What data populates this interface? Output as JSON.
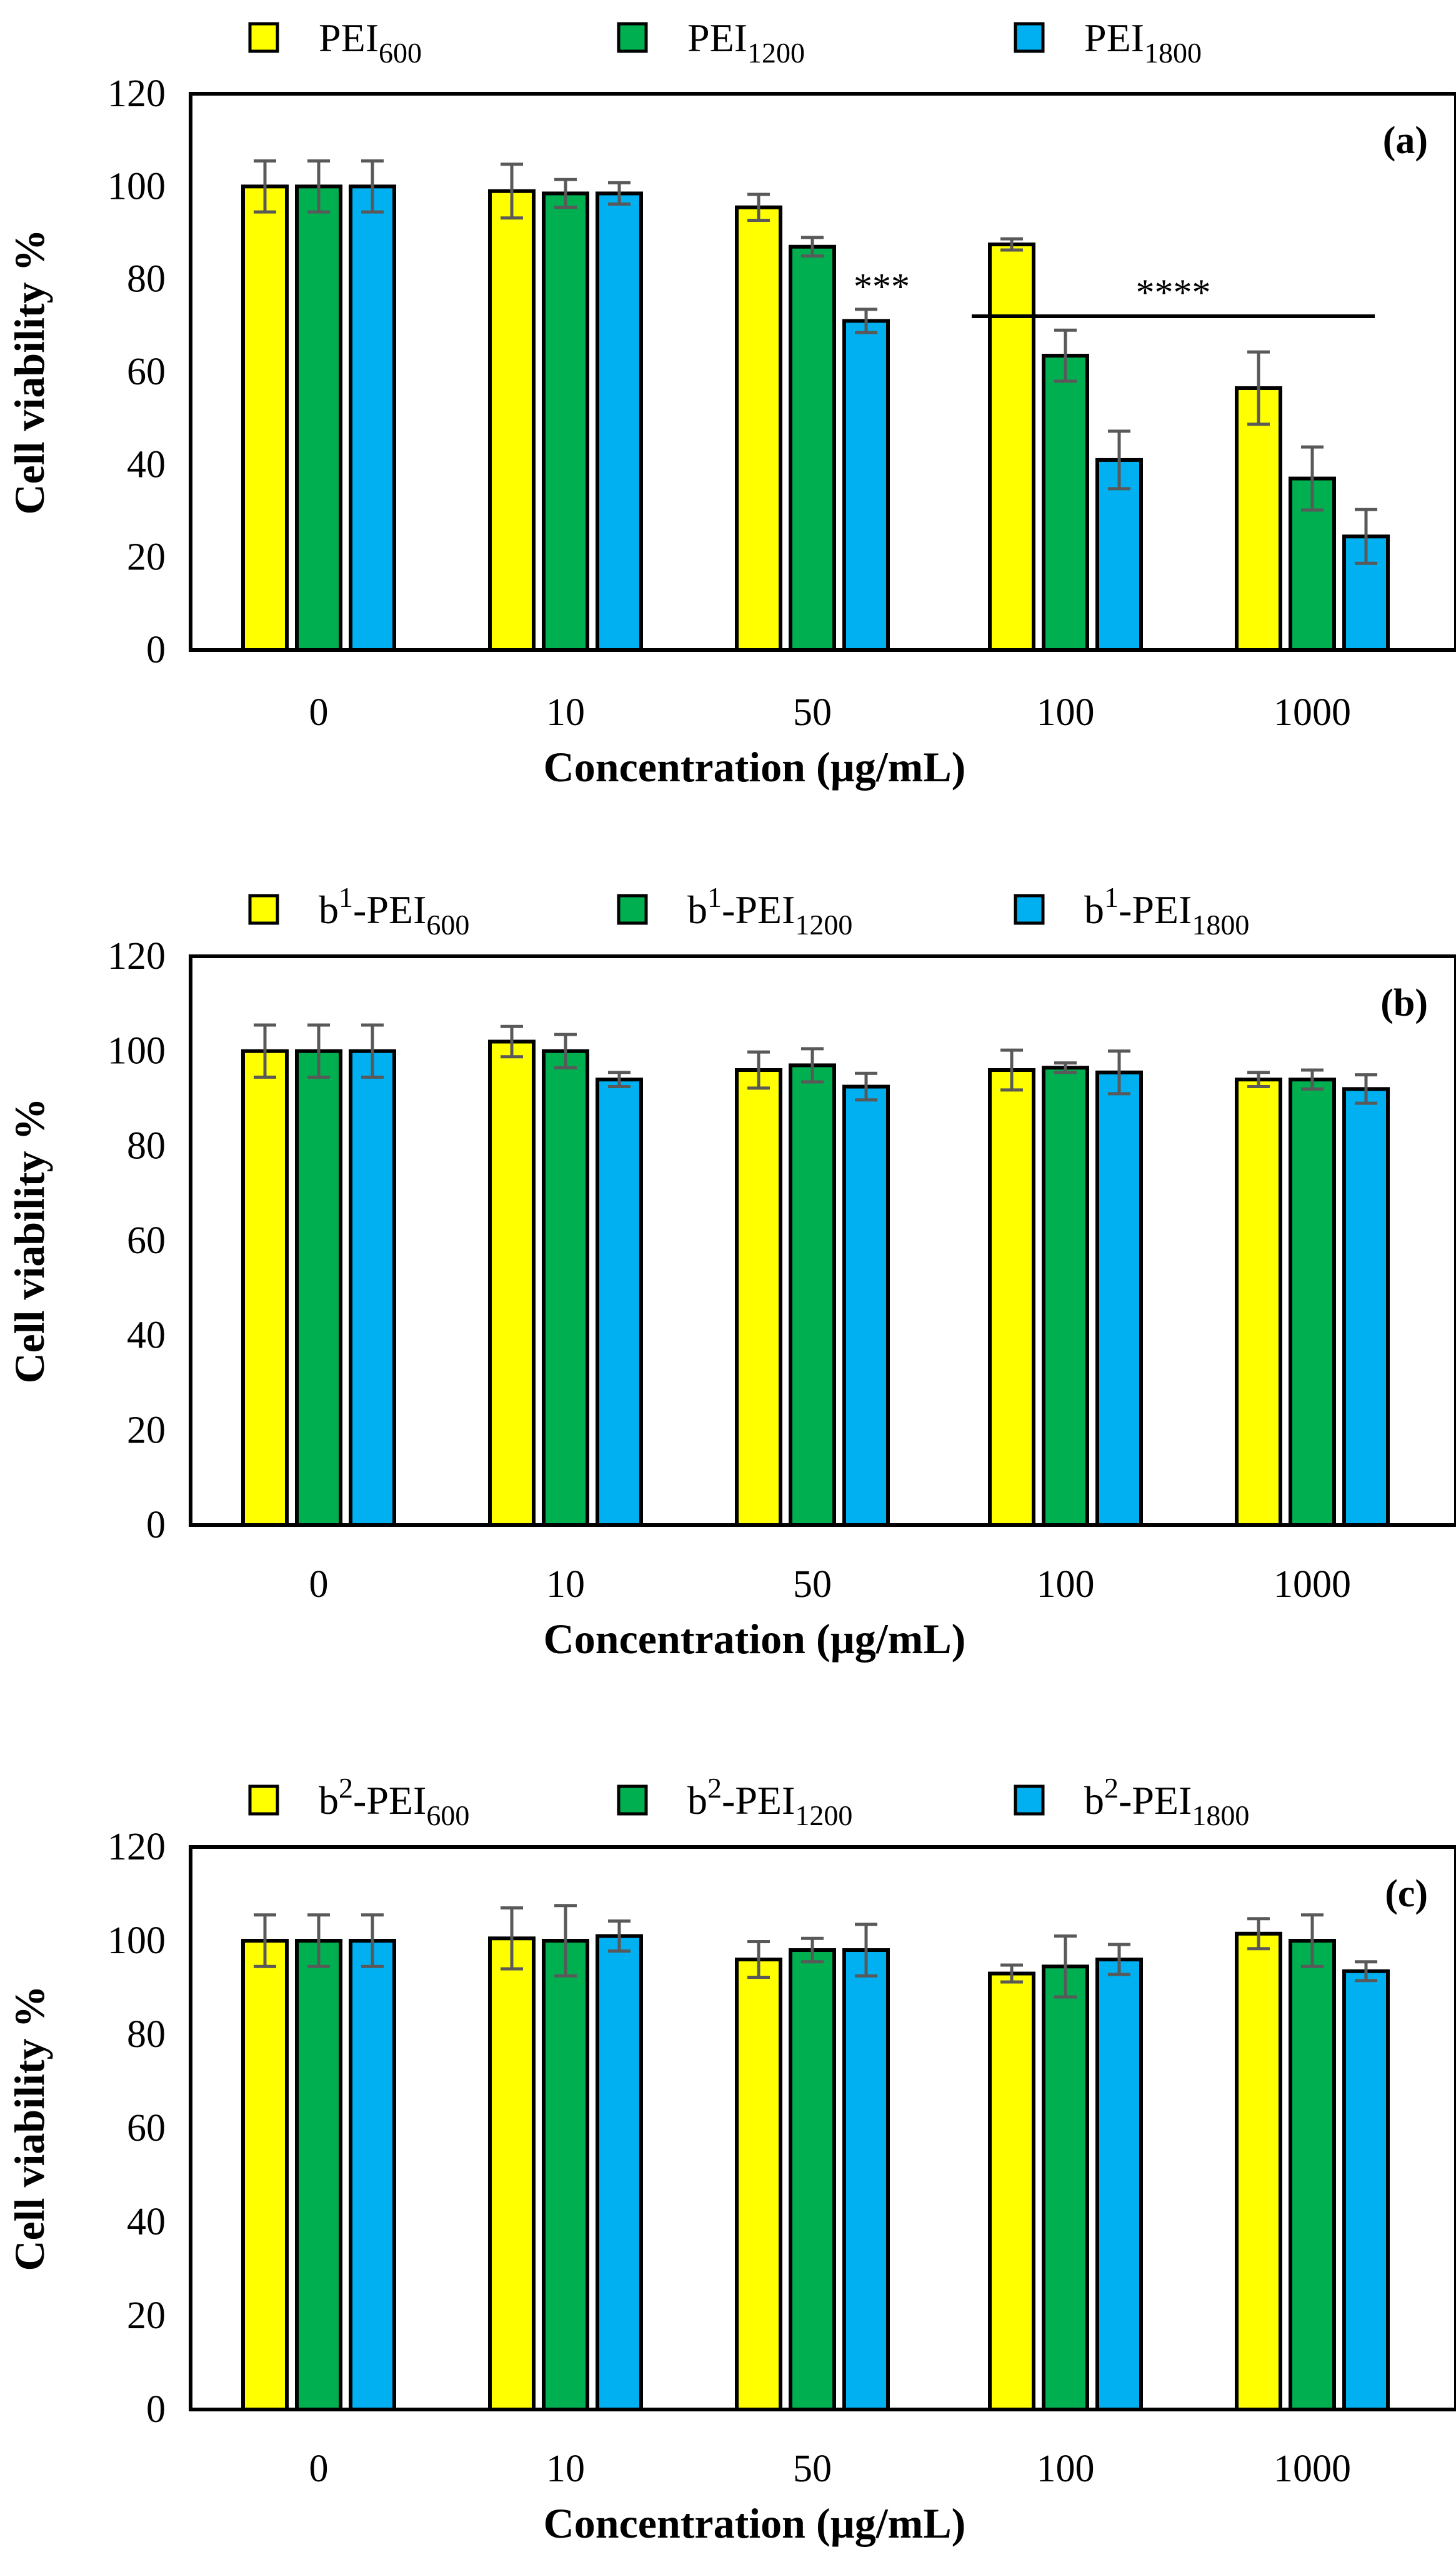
{
  "chart_data": [
    {
      "type": "bar",
      "panel_label": "(a)",
      "categories": [
        "0",
        "10",
        "50",
        "100",
        "1000"
      ],
      "xlabel": "Concentration (µg/mL)",
      "ylabel": "Cell viability %",
      "ylim": [
        0,
        120
      ],
      "yticks": [
        "0",
        "20",
        "40",
        "60",
        "80",
        "100",
        "120"
      ],
      "legend_position": "top",
      "series": [
        {
          "name": "PEI600",
          "prefix": "",
          "sup": "",
          "base": "PEI",
          "sub": "600",
          "color": "#ffff00",
          "values": [
            100,
            99,
            95.5,
            87.5,
            56.5
          ],
          "errors": [
            5.5,
            5.8,
            2.8,
            1.2,
            7.8
          ]
        },
        {
          "name": "PEI1200",
          "prefix": "",
          "sup": "",
          "base": "PEI",
          "sub": "1200",
          "color": "#00b050",
          "values": [
            100,
            98.5,
            87,
            63.5,
            37
          ],
          "errors": [
            5.5,
            3,
            2,
            5.5,
            6.8
          ]
        },
        {
          "name": "PEI1800",
          "prefix": "",
          "sup": "",
          "base": "PEI",
          "sub": "1800",
          "color": "#00b0f0",
          "values": [
            100,
            98.5,
            71,
            41,
            24.5
          ],
          "errors": [
            5.5,
            2.3,
            2.5,
            6.2,
            5.8
          ]
        }
      ],
      "annotations": [
        {
          "text": "***",
          "category_index": 2,
          "series_index": 2,
          "value": 80
        },
        {
          "text": "****",
          "from_category_index": 3,
          "to_category_index": 4,
          "value": 72
        }
      ]
    },
    {
      "type": "bar",
      "panel_label": "(b)",
      "categories": [
        "0",
        "10",
        "50",
        "100",
        "1000"
      ],
      "xlabel": "Concentration (µg/mL)",
      "ylabel": "Cell viability %",
      "ylim": [
        0,
        120
      ],
      "yticks": [
        "0",
        "20",
        "40",
        "60",
        "80",
        "100",
        "120"
      ],
      "legend_position": "top",
      "series": [
        {
          "name": "b1-PEI600",
          "prefix": "b",
          "sup": "1",
          "base": "-PEI",
          "sub": "600",
          "color": "#ffff00",
          "values": [
            100,
            102,
            96,
            96,
            94
          ],
          "errors": [
            5.5,
            3.2,
            3.8,
            4.2,
            1.5
          ]
        },
        {
          "name": "b1-PEI1200",
          "prefix": "b",
          "sup": "1",
          "base": "-PEI",
          "sub": "1200",
          "color": "#00b050",
          "values": [
            100,
            100,
            97,
            96.5,
            94
          ],
          "errors": [
            5.5,
            3.5,
            3.5,
            1,
            2
          ]
        },
        {
          "name": "b1-PEI1800",
          "prefix": "b",
          "sup": "1",
          "base": "-PEI",
          "sub": "1800",
          "color": "#00b0f0",
          "values": [
            100,
            94,
            92.5,
            95.5,
            92
          ],
          "errors": [
            5.5,
            1.5,
            2.8,
            4.5,
            3
          ]
        }
      ]
    },
    {
      "type": "bar",
      "panel_label": "(c)",
      "categories": [
        "0",
        "10",
        "50",
        "100",
        "1000"
      ],
      "xlabel": "Concentration (µg/mL)",
      "ylabel": "Cell viability %",
      "ylim": [
        0,
        120
      ],
      "yticks": [
        "0",
        "20",
        "40",
        "60",
        "80",
        "100",
        "120"
      ],
      "legend_position": "top",
      "series": [
        {
          "name": "b2-PEI600",
          "prefix": "b",
          "sup": "2",
          "base": "-PEI",
          "sub": "600",
          "color": "#ffff00",
          "values": [
            100,
            100.5,
            96,
            93,
            101.5
          ],
          "errors": [
            5.5,
            6.5,
            3.8,
            1.8,
            3.2
          ]
        },
        {
          "name": "b2-PEI1200",
          "prefix": "b",
          "sup": "2",
          "base": "-PEI",
          "sub": "1200",
          "color": "#00b050",
          "values": [
            100,
            100,
            98,
            94.5,
            100
          ],
          "errors": [
            5.5,
            7.5,
            2.5,
            6.5,
            5.5
          ]
        },
        {
          "name": "b2-PEI1800",
          "prefix": "b",
          "sup": "2",
          "base": "-PEI",
          "sub": "1800",
          "color": "#00b0f0",
          "values": [
            100,
            101,
            98,
            96,
            93.5
          ],
          "errors": [
            5.5,
            3.2,
            5.5,
            3.2,
            2
          ]
        }
      ]
    }
  ]
}
